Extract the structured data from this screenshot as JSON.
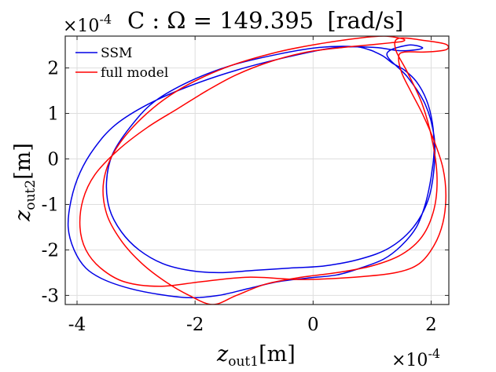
{
  "chart_data": {
    "type": "line",
    "title_prefix": "C : Ω =",
    "title_value": "149.395",
    "title_unit": "[rad/s]",
    "x_exponent": "×10",
    "x_exponent_power": "-4",
    "y_exponent": "×10",
    "y_exponent_power": "-4",
    "xlabel_symbol": "z",
    "xlabel_sub": "out1",
    "xlabel_unit": "[m]",
    "ylabel_symbol": "z",
    "ylabel_sub": "out2",
    "ylabel_unit": "[m]",
    "xlim": [
      -4.2,
      2.3
    ],
    "ylim": [
      -3.2,
      2.7
    ],
    "xticks": [
      -4,
      -2,
      0,
      2
    ],
    "xtick_labels": [
      "-4",
      "-2",
      "0",
      "2"
    ],
    "yticks": [
      -3,
      -2,
      -1,
      0,
      1,
      2
    ],
    "ytick_labels": [
      "-3",
      "-2",
      "-1",
      "0",
      "1",
      "2"
    ],
    "grid": true,
    "legend_position": "top-left",
    "series": [
      {
        "name": "SSM",
        "color": "#0000e6",
        "x": [
          1.6,
          1.85,
          1.75,
          1.45,
          1.05,
          0.4,
          -0.4,
          -1.3,
          -2.1,
          -2.8,
          -3.35,
          -3.7,
          -3.95,
          -4.1,
          -4.15,
          -4.05,
          -3.85,
          -3.55,
          -3.1,
          -2.6,
          -2.1,
          -1.6,
          -1.1,
          -0.6,
          -0.1,
          0.4,
          0.8,
          1.2,
          1.5,
          1.75,
          1.9,
          2.0,
          2.05,
          2.02,
          1.92,
          1.75,
          1.55,
          1.35,
          1.2,
          1.05,
          0.95,
          0.7,
          0.1,
          -0.6,
          -1.4,
          -2.1,
          -2.7,
          -3.1,
          -3.4,
          -3.5,
          -3.45,
          -3.25,
          -2.95,
          -2.55,
          -2.1,
          -1.6,
          -1.0,
          -0.4,
          0.2,
          0.8,
          1.3,
          1.7,
          1.95,
          2.05,
          2.05,
          1.9,
          1.6,
          1.25
        ],
        "y": [
          2.5,
          2.45,
          2.4,
          2.38,
          2.45,
          2.45,
          2.25,
          1.95,
          1.6,
          1.2,
          0.75,
          0.25,
          -0.3,
          -0.9,
          -1.5,
          -2.0,
          -2.4,
          -2.65,
          -2.85,
          -2.98,
          -3.05,
          -3.0,
          -2.85,
          -2.7,
          -2.62,
          -2.55,
          -2.4,
          -2.2,
          -1.9,
          -1.5,
          -1.0,
          -0.4,
          0.2,
          0.8,
          1.3,
          1.7,
          1.95,
          2.1,
          2.25,
          2.35,
          2.4,
          2.47,
          2.45,
          2.3,
          2.05,
          1.7,
          1.25,
          0.7,
          0.1,
          -0.5,
          -1.1,
          -1.6,
          -2.0,
          -2.3,
          -2.45,
          -2.5,
          -2.45,
          -2.4,
          -2.35,
          -2.2,
          -1.95,
          -1.5,
          -0.9,
          -0.2,
          0.5,
          1.2,
          1.8,
          2.3
        ]
      },
      {
        "name": "full model",
        "color": "#ff0000",
        "x": [
          1.45,
          1.9,
          2.25,
          2.25,
          1.9,
          1.55,
          1.45,
          1.5,
          1.65,
          1.85,
          2.05,
          2.2,
          2.25,
          2.2,
          2.05,
          1.8,
          1.4,
          0.7,
          -0.2,
          -1.1,
          -1.9,
          -2.6,
          -3.2,
          -3.6,
          -3.85,
          -3.95,
          -3.9,
          -3.7,
          -3.3,
          -2.8,
          -2.3,
          -1.8,
          -1.3,
          -0.7,
          -0.1,
          0.5,
          0.9,
          1.3,
          1.5,
          1.55,
          1.45,
          1.2,
          0.8,
          0.2,
          -0.6,
          -1.5,
          -2.3,
          -2.9,
          -3.35,
          -3.55,
          -3.5,
          -3.25,
          -2.9,
          -2.5,
          -2.1,
          -1.7,
          -1.3,
          -0.8,
          -0.2,
          0.4,
          1.0,
          1.5,
          1.85,
          2.05,
          2.1,
          2.02,
          1.85,
          1.6,
          1.4
        ],
        "y": [
          2.65,
          2.6,
          2.52,
          2.4,
          2.35,
          2.35,
          2.25,
          1.9,
          1.5,
          1.0,
          0.4,
          -0.2,
          -0.8,
          -1.4,
          -1.9,
          -2.3,
          -2.5,
          -2.6,
          -2.65,
          -2.6,
          -2.7,
          -2.8,
          -2.7,
          -2.4,
          -2.0,
          -1.5,
          -0.9,
          -0.35,
          0.2,
          0.7,
          1.1,
          1.5,
          1.85,
          2.15,
          2.35,
          2.45,
          2.5,
          2.55,
          2.58,
          2.62,
          2.66,
          2.7,
          2.66,
          2.55,
          2.35,
          2.0,
          1.5,
          0.9,
          0.2,
          -0.5,
          -1.2,
          -1.8,
          -2.3,
          -2.7,
          -3.0,
          -3.2,
          -3.0,
          -2.75,
          -2.6,
          -2.5,
          -2.35,
          -2.1,
          -1.7,
          -1.1,
          -0.4,
          0.4,
          1.2,
          1.9,
          2.4
        ]
      }
    ]
  }
}
